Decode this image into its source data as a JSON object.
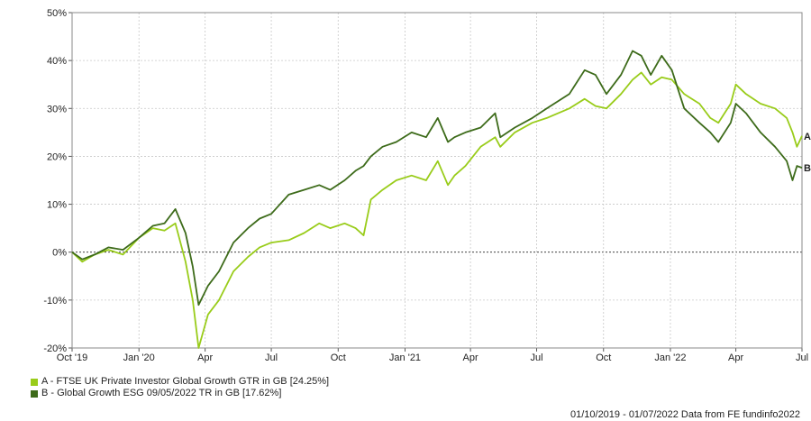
{
  "chart_data": {
    "type": "line",
    "ylim": [
      -20,
      50
    ],
    "y_ticks": [
      {
        "value": -20,
        "label": "-20%"
      },
      {
        "value": -10,
        "label": "-10%"
      },
      {
        "value": 0,
        "label": "0%"
      },
      {
        "value": 10,
        "label": "10%"
      },
      {
        "value": 20,
        "label": "20%"
      },
      {
        "value": 30,
        "label": "30%"
      },
      {
        "value": 40,
        "label": "40%"
      },
      {
        "value": 50,
        "label": "50%"
      }
    ],
    "x_range": [
      "2019-10-01",
      "2022-07-01"
    ],
    "x_ticks": [
      {
        "date": "2019-10-01",
        "label": "Oct '19"
      },
      {
        "date": "2020-01-01",
        "label": "Jan '20"
      },
      {
        "date": "2020-04-01",
        "label": "Apr"
      },
      {
        "date": "2020-07-01",
        "label": "Jul"
      },
      {
        "date": "2020-10-01",
        "label": "Oct"
      },
      {
        "date": "2021-01-01",
        "label": "Jan '21"
      },
      {
        "date": "2021-04-01",
        "label": "Apr"
      },
      {
        "date": "2021-07-01",
        "label": "Jul"
      },
      {
        "date": "2021-10-01",
        "label": "Oct"
      },
      {
        "date": "2022-01-01",
        "label": "Jan '22"
      },
      {
        "date": "2022-04-01",
        "label": "Apr"
      },
      {
        "date": "2022-07-01",
        "label": "Jul"
      }
    ],
    "grid": true,
    "zero_line": true,
    "series": [
      {
        "name": "A - FTSE UK Private Investor Global Growth GTR in GB [24.25%]",
        "end_label": "A",
        "color": "#99cc1a",
        "points": [
          [
            "2019-10-01",
            0
          ],
          [
            "2019-10-15",
            -2
          ],
          [
            "2019-11-01",
            -0.5
          ],
          [
            "2019-11-20",
            0.5
          ],
          [
            "2019-12-10",
            -0.5
          ],
          [
            "2020-01-01",
            3
          ],
          [
            "2020-01-20",
            5
          ],
          [
            "2020-02-05",
            4.5
          ],
          [
            "2020-02-20",
            6
          ],
          [
            "2020-03-05",
            -2
          ],
          [
            "2020-03-15",
            -10
          ],
          [
            "2020-03-23",
            -20
          ],
          [
            "2020-04-05",
            -13
          ],
          [
            "2020-04-20",
            -10
          ],
          [
            "2020-05-10",
            -4
          ],
          [
            "2020-05-30",
            -1
          ],
          [
            "2020-06-15",
            1
          ],
          [
            "2020-07-01",
            2
          ],
          [
            "2020-07-25",
            2.5
          ],
          [
            "2020-08-15",
            4
          ],
          [
            "2020-09-05",
            6
          ],
          [
            "2020-09-20",
            5
          ],
          [
            "2020-10-10",
            6
          ],
          [
            "2020-10-25",
            5
          ],
          [
            "2020-11-05",
            3.5
          ],
          [
            "2020-11-15",
            11
          ],
          [
            "2020-12-01",
            13
          ],
          [
            "2020-12-20",
            15
          ],
          [
            "2021-01-10",
            16
          ],
          [
            "2021-01-30",
            15
          ],
          [
            "2021-02-15",
            19
          ],
          [
            "2021-03-01",
            14
          ],
          [
            "2021-03-10",
            16
          ],
          [
            "2021-03-25",
            18
          ],
          [
            "2021-04-15",
            22
          ],
          [
            "2021-05-05",
            24
          ],
          [
            "2021-05-12",
            22
          ],
          [
            "2021-06-01",
            25
          ],
          [
            "2021-06-25",
            27
          ],
          [
            "2021-07-15",
            28
          ],
          [
            "2021-08-15",
            30
          ],
          [
            "2021-09-05",
            32
          ],
          [
            "2021-09-20",
            30.5
          ],
          [
            "2021-10-05",
            30
          ],
          [
            "2021-10-25",
            33
          ],
          [
            "2021-11-10",
            36
          ],
          [
            "2021-11-22",
            37.5
          ],
          [
            "2021-12-05",
            35
          ],
          [
            "2021-12-20",
            36.5
          ],
          [
            "2022-01-03",
            36
          ],
          [
            "2022-01-20",
            33
          ],
          [
            "2022-02-10",
            31
          ],
          [
            "2022-02-25",
            28
          ],
          [
            "2022-03-08",
            27
          ],
          [
            "2022-03-25",
            31
          ],
          [
            "2022-04-01",
            35
          ],
          [
            "2022-04-15",
            33
          ],
          [
            "2022-05-05",
            31
          ],
          [
            "2022-05-25",
            30
          ],
          [
            "2022-06-10",
            28
          ],
          [
            "2022-06-18",
            25
          ],
          [
            "2022-06-24",
            22
          ],
          [
            "2022-07-01",
            24.25
          ]
        ]
      },
      {
        "name": "B - Global Growth ESG 09/05/2022 TR in GB [17.62%]",
        "end_label": "B",
        "color": "#3d6b1a",
        "points": [
          [
            "2019-10-01",
            0
          ],
          [
            "2019-10-15",
            -1.5
          ],
          [
            "2019-11-01",
            -0.5
          ],
          [
            "2019-11-20",
            1
          ],
          [
            "2019-12-10",
            0.5
          ],
          [
            "2020-01-01",
            3
          ],
          [
            "2020-01-20",
            5.5
          ],
          [
            "2020-02-05",
            6
          ],
          [
            "2020-02-20",
            9
          ],
          [
            "2020-03-05",
            4
          ],
          [
            "2020-03-15",
            -3
          ],
          [
            "2020-03-23",
            -11
          ],
          [
            "2020-04-05",
            -7
          ],
          [
            "2020-04-20",
            -4
          ],
          [
            "2020-05-10",
            2
          ],
          [
            "2020-05-30",
            5
          ],
          [
            "2020-06-15",
            7
          ],
          [
            "2020-07-01",
            8
          ],
          [
            "2020-07-25",
            12
          ],
          [
            "2020-08-15",
            13
          ],
          [
            "2020-09-05",
            14
          ],
          [
            "2020-09-20",
            13
          ],
          [
            "2020-10-10",
            15
          ],
          [
            "2020-10-25",
            17
          ],
          [
            "2020-11-05",
            18
          ],
          [
            "2020-11-15",
            20
          ],
          [
            "2020-12-01",
            22
          ],
          [
            "2020-12-20",
            23
          ],
          [
            "2021-01-10",
            25
          ],
          [
            "2021-01-30",
            24
          ],
          [
            "2021-02-15",
            28
          ],
          [
            "2021-03-01",
            23
          ],
          [
            "2021-03-10",
            24
          ],
          [
            "2021-03-25",
            25
          ],
          [
            "2021-04-15",
            26
          ],
          [
            "2021-05-05",
            29
          ],
          [
            "2021-05-12",
            24
          ],
          [
            "2021-06-01",
            26
          ],
          [
            "2021-06-25",
            28
          ],
          [
            "2021-07-15",
            30
          ],
          [
            "2021-08-15",
            33
          ],
          [
            "2021-09-05",
            38
          ],
          [
            "2021-09-20",
            37
          ],
          [
            "2021-10-05",
            33
          ],
          [
            "2021-10-25",
            37
          ],
          [
            "2021-11-10",
            42
          ],
          [
            "2021-11-22",
            41
          ],
          [
            "2021-12-05",
            37
          ],
          [
            "2021-12-20",
            41
          ],
          [
            "2022-01-03",
            38
          ],
          [
            "2022-01-20",
            30
          ],
          [
            "2022-02-10",
            27
          ],
          [
            "2022-02-25",
            25
          ],
          [
            "2022-03-08",
            23
          ],
          [
            "2022-03-25",
            27
          ],
          [
            "2022-04-01",
            31
          ],
          [
            "2022-04-15",
            29
          ],
          [
            "2022-05-05",
            25
          ],
          [
            "2022-05-25",
            22
          ],
          [
            "2022-06-10",
            19
          ],
          [
            "2022-06-18",
            15
          ],
          [
            "2022-06-24",
            18
          ],
          [
            "2022-07-01",
            17.62
          ]
        ]
      }
    ]
  },
  "legend": {
    "items": [
      {
        "label": "A - FTSE UK Private Investor Global Growth GTR in GB [24.25%]",
        "color": "#99cc1a"
      },
      {
        "label": "B - Global Growth ESG 09/05/2022 TR in GB [17.62%]",
        "color": "#3d6b1a"
      }
    ]
  },
  "footer": {
    "text": "01/10/2019 - 01/07/2022 Data from FE fundinfo2022"
  }
}
